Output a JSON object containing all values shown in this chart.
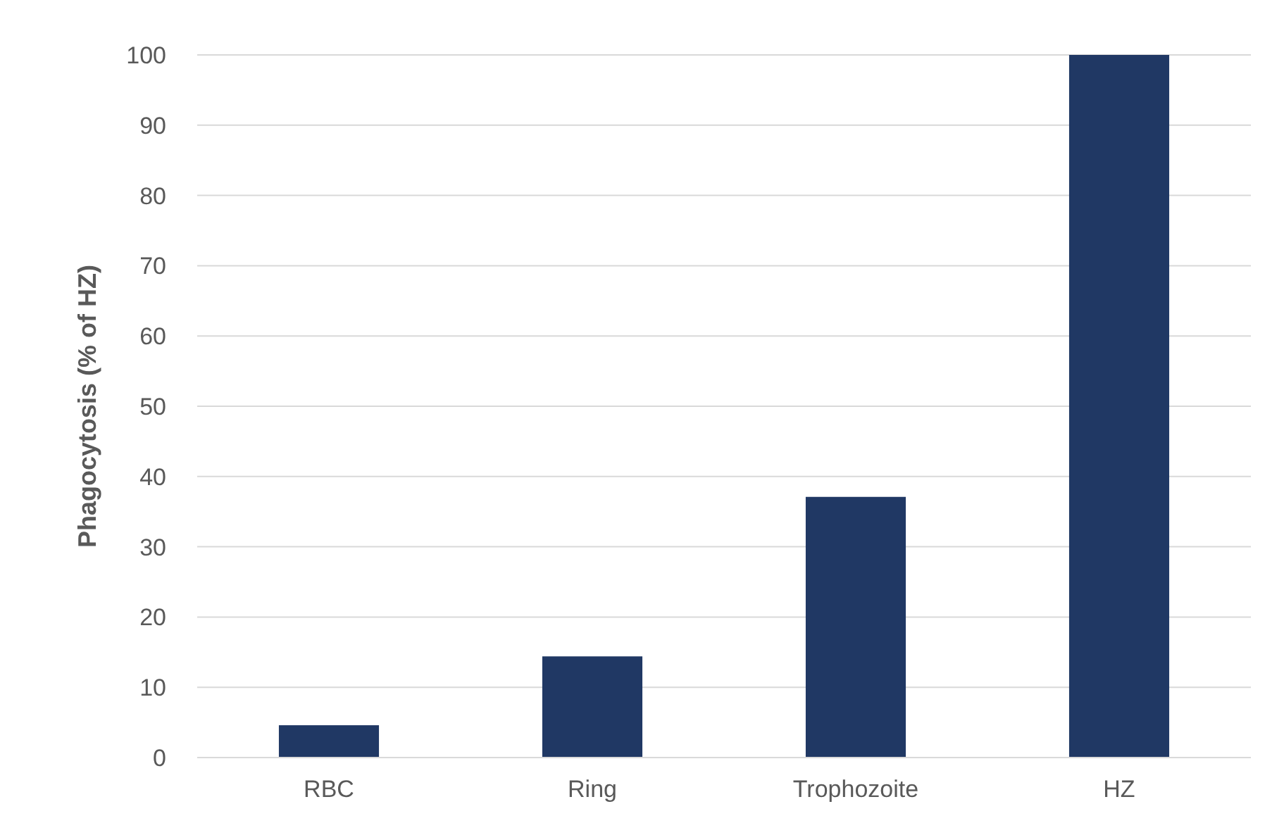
{
  "chart_data": {
    "type": "bar",
    "ylabel": "Phagocytosis (% of HZ)",
    "categories": [
      "RBC",
      "Ring",
      "Trophozoite",
      "HZ"
    ],
    "values": [
      4.6,
      14.4,
      37.1,
      100
    ],
    "color": "#203864",
    "ylim": [
      0,
      100
    ],
    "yticks": [
      0,
      10,
      20,
      30,
      40,
      50,
      60,
      70,
      80,
      90,
      100
    ],
    "grid": "y"
  }
}
